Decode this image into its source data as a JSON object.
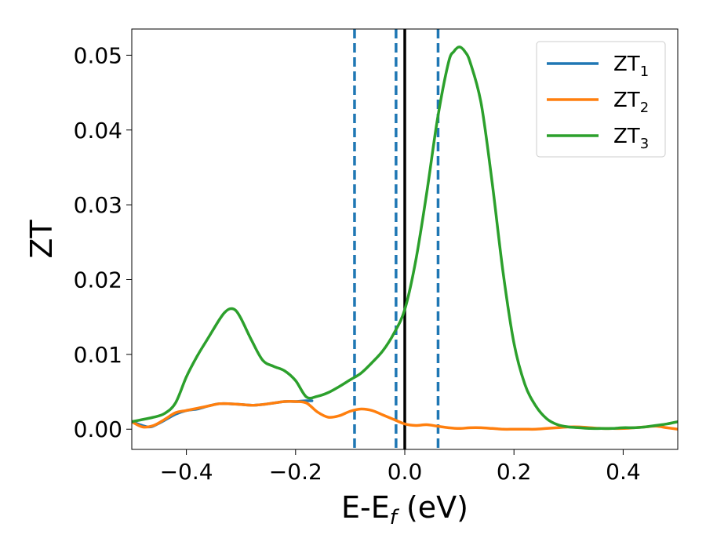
{
  "chart_data": {
    "type": "line",
    "xlabel_main": "E-E",
    "xlabel_sub": "f",
    "xlabel_unit": " (eV)",
    "ylabel": "ZT",
    "xlim": [
      -0.5,
      0.5
    ],
    "ylim": [
      -0.0027,
      0.0535
    ],
    "xticks": [
      -0.4,
      -0.2,
      0.0,
      0.2,
      0.4
    ],
    "xtick_labels": [
      "−0.4",
      "−0.2",
      "0.0",
      "0.2",
      "0.4"
    ],
    "yticks": [
      0.0,
      0.01,
      0.02,
      0.03,
      0.04,
      0.05
    ],
    "ytick_labels": [
      "0.00",
      "0.01",
      "0.02",
      "0.03",
      "0.04",
      "0.05"
    ],
    "legend_position": "top-right",
    "grid": false,
    "vlines": [
      {
        "x": -0.092,
        "style": "dashed",
        "color": "#1f77b4"
      },
      {
        "x": -0.016,
        "style": "dashed",
        "color": "#1f77b4"
      },
      {
        "x": 0.0,
        "style": "solid",
        "color": "#000000"
      },
      {
        "x": 0.061,
        "style": "dashed",
        "color": "#1f77b4"
      }
    ],
    "series": [
      {
        "name": "ZT",
        "sub": "1",
        "color": "#1f77b4",
        "x": [
          -0.5,
          -0.47,
          -0.45,
          -0.42,
          -0.4,
          -0.38,
          -0.36,
          -0.34,
          -0.32,
          -0.3,
          -0.28,
          -0.26,
          -0.24,
          -0.22,
          -0.2,
          -0.18,
          -0.17
        ],
        "y": [
          0.001,
          0.0003,
          0.0008,
          0.002,
          0.0025,
          0.0027,
          0.0031,
          0.0034,
          0.0034,
          0.0033,
          0.0032,
          0.0033,
          0.0035,
          0.0037,
          0.0037,
          0.0038,
          0.0038
        ]
      },
      {
        "name": "ZT",
        "sub": "2",
        "color": "#ff7f0e",
        "x": [
          -0.5,
          -0.48,
          -0.46,
          -0.44,
          -0.42,
          -0.4,
          -0.38,
          -0.36,
          -0.34,
          -0.32,
          -0.3,
          -0.28,
          -0.26,
          -0.24,
          -0.22,
          -0.2,
          -0.18,
          -0.16,
          -0.14,
          -0.12,
          -0.1,
          -0.08,
          -0.06,
          -0.04,
          -0.02,
          0.0,
          0.02,
          0.04,
          0.06,
          0.08,
          0.1,
          0.12,
          0.14,
          0.16,
          0.18,
          0.2,
          0.22,
          0.24,
          0.26,
          0.28,
          0.3,
          0.32,
          0.34,
          0.36,
          0.38,
          0.4,
          0.42,
          0.44,
          0.46,
          0.48,
          0.5
        ],
        "y": [
          0.001,
          0.0003,
          0.0005,
          0.0013,
          0.0022,
          0.0025,
          0.0028,
          0.0031,
          0.0034,
          0.0034,
          0.0033,
          0.0032,
          0.0033,
          0.0035,
          0.0037,
          0.0037,
          0.0035,
          0.0023,
          0.0016,
          0.0018,
          0.0024,
          0.0027,
          0.0025,
          0.0019,
          0.0013,
          0.0007,
          0.0005,
          0.0006,
          0.0004,
          0.0002,
          0.0001,
          0.0002,
          0.0002,
          0.0001,
          0.0,
          0.0,
          0.0,
          0.0,
          0.0001,
          0.0002,
          0.0003,
          0.0003,
          0.0002,
          0.0001,
          0.0001,
          0.0001,
          0.0002,
          0.0003,
          0.0004,
          0.0002,
          0.0
        ]
      },
      {
        "name": "ZT",
        "sub": "3",
        "color": "#2ca02c",
        "x": [
          -0.5,
          -0.48,
          -0.46,
          -0.44,
          -0.42,
          -0.4,
          -0.38,
          -0.36,
          -0.34,
          -0.33,
          -0.32,
          -0.31,
          -0.3,
          -0.28,
          -0.26,
          -0.24,
          -0.22,
          -0.2,
          -0.18,
          -0.16,
          -0.14,
          -0.12,
          -0.1,
          -0.08,
          -0.06,
          -0.04,
          -0.02,
          0.0,
          0.02,
          0.04,
          0.06,
          0.08,
          0.09,
          0.1,
          0.11,
          0.12,
          0.14,
          0.16,
          0.18,
          0.2,
          0.22,
          0.24,
          0.26,
          0.28,
          0.3,
          0.32,
          0.34,
          0.36,
          0.38,
          0.4,
          0.42,
          0.44,
          0.46,
          0.48,
          0.5
        ],
        "y": [
          0.001,
          0.0013,
          0.0016,
          0.0021,
          0.0035,
          0.007,
          0.0098,
          0.0122,
          0.0146,
          0.0156,
          0.0161,
          0.0159,
          0.0148,
          0.0118,
          0.0092,
          0.0084,
          0.0078,
          0.0065,
          0.0043,
          0.0044,
          0.0049,
          0.0057,
          0.0066,
          0.0075,
          0.0089,
          0.0105,
          0.0128,
          0.016,
          0.0225,
          0.0315,
          0.0415,
          0.049,
          0.0505,
          0.0511,
          0.0505,
          0.049,
          0.0435,
          0.033,
          0.021,
          0.0115,
          0.006,
          0.0031,
          0.0014,
          0.0006,
          0.0003,
          0.0002,
          0.0001,
          0.0001,
          0.0001,
          0.0002,
          0.0002,
          0.0003,
          0.0005,
          0.0007,
          0.001
        ]
      }
    ]
  }
}
